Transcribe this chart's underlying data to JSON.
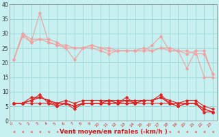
{
  "background_color": "#c8f0f0",
  "grid_color": "#a0d8d8",
  "xlabel": "Vent moyen/en rafales ( km/h )",
  "x_ticks": [
    0,
    1,
    2,
    3,
    4,
    5,
    6,
    7,
    8,
    9,
    10,
    11,
    12,
    13,
    14,
    15,
    16,
    17,
    18,
    19,
    20,
    21,
    22,
    23
  ],
  "ylim": [
    0,
    40
  ],
  "yticks": [
    0,
    5,
    10,
    15,
    20,
    25,
    30,
    35,
    40
  ],
  "series_light": [
    {
      "color": "#f0a0a0",
      "marker": "D",
      "markersize": 1.8,
      "linewidth": 0.8,
      "y": [
        21,
        30,
        27,
        37,
        27,
        26,
        25,
        21,
        25,
        25,
        24,
        23,
        24,
        24,
        24,
        24,
        26,
        29,
        24,
        24,
        18,
        24,
        15,
        15
      ]
    },
    {
      "color": "#f0a0a0",
      "marker": "D",
      "markersize": 1.8,
      "linewidth": 0.8,
      "y": [
        21,
        29,
        27,
        28,
        27,
        26,
        26,
        25,
        25,
        26,
        25,
        24,
        24,
        24,
        24,
        24,
        24,
        25,
        24,
        24,
        24,
        23,
        23,
        16
      ]
    },
    {
      "color": "#f0a0a0",
      "marker": "D",
      "markersize": 1.8,
      "linewidth": 0.8,
      "y": [
        21,
        30,
        28,
        28,
        28,
        27,
        25,
        25,
        25,
        26,
        25,
        25,
        24,
        24,
        24,
        25,
        24,
        25,
        25,
        24,
        23,
        24,
        24,
        16
      ]
    }
  ],
  "series_dark": [
    {
      "color": "#dd2222",
      "marker": "D",
      "markersize": 1.8,
      "linewidth": 0.8,
      "y": [
        6,
        6,
        7,
        8,
        7,
        5,
        6,
        4,
        6,
        6,
        6,
        7,
        6,
        8,
        6,
        7,
        7,
        8,
        6,
        5,
        6,
        6,
        3,
        3
      ]
    },
    {
      "color": "#dd2222",
      "marker": "D",
      "markersize": 1.8,
      "linewidth": 0.8,
      "y": [
        6,
        6,
        7,
        9,
        6,
        6,
        6,
        5,
        6,
        6,
        6,
        6,
        6,
        6,
        6,
        7,
        7,
        9,
        6,
        6,
        6,
        6,
        4,
        3
      ]
    },
    {
      "color": "#dd2222",
      "marker": "D",
      "markersize": 1.8,
      "linewidth": 0.8,
      "y": [
        6,
        6,
        7,
        8,
        7,
        6,
        6,
        5,
        6,
        6,
        6,
        7,
        6,
        7,
        6,
        7,
        7,
        8,
        6,
        6,
        6,
        6,
        4,
        3
      ]
    },
    {
      "color": "#dd2222",
      "marker": "D",
      "markersize": 1.8,
      "linewidth": 0.8,
      "y": [
        6,
        6,
        8,
        8,
        7,
        6,
        7,
        6,
        7,
        7,
        7,
        7,
        7,
        7,
        7,
        7,
        7,
        8,
        7,
        6,
        7,
        7,
        5,
        4
      ]
    },
    {
      "color": "#dd2222",
      "marker": "D",
      "markersize": 1.8,
      "linewidth": 0.8,
      "y": [
        6,
        6,
        6,
        6,
        6,
        5,
        6,
        5,
        6,
        6,
        6,
        6,
        6,
        6,
        6,
        6,
        6,
        6,
        6,
        5,
        6,
        6,
        3,
        3
      ]
    }
  ],
  "arrow_color": "#e05555",
  "xlabel_color": "#cc2222",
  "xlabel_fontsize": 6.5,
  "xtick_fontsize": 4.5,
  "ytick_fontsize": 5.5
}
